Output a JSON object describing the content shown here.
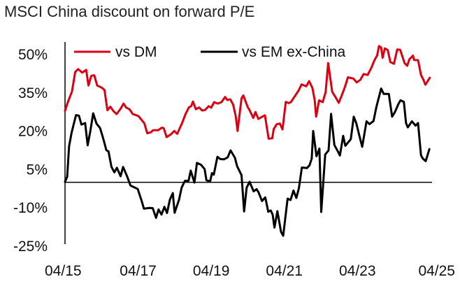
{
  "chart_data": {
    "type": "line",
    "title": "MSCI China discount on forward P/E",
    "xlabel": "",
    "ylabel": "",
    "ylim": [
      -25,
      52
    ],
    "xlim": [
      2015.25,
      2025.33
    ],
    "yticks": [
      50,
      35,
      20,
      5,
      -10,
      -25
    ],
    "ytick_labels": [
      "50%",
      "35%",
      "20%",
      "5%",
      "-10%",
      "-25%"
    ],
    "xticks": [
      2015.25,
      2017.25,
      2019.25,
      2021.25,
      2023.25,
      2025.25
    ],
    "xtick_labels": [
      "04/15",
      "04/17",
      "04/19",
      "04/21",
      "04/23",
      "04/25"
    ],
    "legend": "top-left",
    "grid": false,
    "series": [
      {
        "name": "vs DM",
        "color": "#db0011",
        "points": [
          [
            2015.25,
            28.0
          ],
          [
            2015.33,
            31.5
          ],
          [
            2015.44,
            35.5
          ],
          [
            2015.53,
            43.2
          ],
          [
            2015.61,
            44.3
          ],
          [
            2015.72,
            42.9
          ],
          [
            2015.83,
            44.0
          ],
          [
            2015.89,
            37.9
          ],
          [
            2015.97,
            41.7
          ],
          [
            2016.05,
            41.9
          ],
          [
            2016.13,
            37.9
          ],
          [
            2016.25,
            37.1
          ],
          [
            2016.33,
            36.1
          ],
          [
            2016.41,
            28.2
          ],
          [
            2016.49,
            29.6
          ],
          [
            2016.58,
            27.8
          ],
          [
            2016.66,
            26.7
          ],
          [
            2016.77,
            28.8
          ],
          [
            2016.85,
            30.8
          ],
          [
            2016.92,
            29.3
          ],
          [
            2017.02,
            28.5
          ],
          [
            2017.1,
            26.8
          ],
          [
            2017.26,
            25.9
          ],
          [
            2017.42,
            23.1
          ],
          [
            2017.5,
            19.2
          ],
          [
            2017.6,
            19.6
          ],
          [
            2017.66,
            20.4
          ],
          [
            2017.8,
            20.4
          ],
          [
            2017.9,
            21.4
          ],
          [
            2017.95,
            21.2
          ],
          [
            2018.03,
            17.7
          ],
          [
            2018.14,
            18.7
          ],
          [
            2018.24,
            20.1
          ],
          [
            2018.32,
            19.0
          ],
          [
            2018.45,
            23.1
          ],
          [
            2018.55,
            26.8
          ],
          [
            2018.64,
            29.3
          ],
          [
            2018.7,
            29.8
          ],
          [
            2018.75,
            31.6
          ],
          [
            2018.83,
            28.6
          ],
          [
            2018.92,
            29.3
          ],
          [
            2019.0,
            28.1
          ],
          [
            2019.08,
            28.3
          ],
          [
            2019.18,
            29.8
          ],
          [
            2019.25,
            29.2
          ],
          [
            2019.33,
            31.4
          ],
          [
            2019.43,
            30.8
          ],
          [
            2019.53,
            31.4
          ],
          [
            2019.63,
            33.4
          ],
          [
            2019.69,
            32.2
          ],
          [
            2019.77,
            32.5
          ],
          [
            2019.85,
            30.4
          ],
          [
            2019.92,
            25.9
          ],
          [
            2019.97,
            20.1
          ],
          [
            2020.08,
            32.9
          ],
          [
            2020.13,
            34.0
          ],
          [
            2020.25,
            29.4
          ],
          [
            2020.29,
            28.5
          ],
          [
            2020.4,
            25.2
          ],
          [
            2020.46,
            27.5
          ],
          [
            2020.54,
            24.8
          ],
          [
            2020.62,
            25.5
          ],
          [
            2020.72,
            26.2
          ],
          [
            2020.82,
            17.1
          ],
          [
            2020.92,
            17.2
          ],
          [
            2020.96,
            20.8
          ],
          [
            2021.04,
            22.7
          ],
          [
            2021.13,
            23.0
          ],
          [
            2021.2,
            20.7
          ],
          [
            2021.29,
            31.5
          ],
          [
            2021.37,
            31.0
          ],
          [
            2021.43,
            31.4
          ],
          [
            2021.51,
            33.1
          ],
          [
            2021.64,
            35.9
          ],
          [
            2021.72,
            38.3
          ],
          [
            2021.85,
            37.6
          ],
          [
            2021.93,
            39.6
          ],
          [
            2022.02,
            36.9
          ],
          [
            2022.08,
            32.3
          ],
          [
            2022.12,
            25.7
          ],
          [
            2022.2,
            32.1
          ],
          [
            2022.3,
            31.4
          ],
          [
            2022.38,
            35.3
          ],
          [
            2022.45,
            46.7
          ],
          [
            2022.56,
            35.4
          ],
          [
            2022.66,
            33.1
          ],
          [
            2022.74,
            31.1
          ],
          [
            2022.84,
            34.7
          ],
          [
            2022.91,
            37.4
          ],
          [
            2022.99,
            41.1
          ],
          [
            2023.14,
            40.6
          ],
          [
            2023.23,
            39.1
          ],
          [
            2023.33,
            40.1
          ],
          [
            2023.42,
            42.4
          ],
          [
            2023.53,
            42.0
          ],
          [
            2023.63,
            44.8
          ],
          [
            2023.71,
            47.6
          ],
          [
            2023.79,
            49.7
          ],
          [
            2023.84,
            53.3
          ],
          [
            2023.9,
            52.8
          ],
          [
            2023.94,
            48.7
          ],
          [
            2024.0,
            52.4
          ],
          [
            2024.08,
            51.8
          ],
          [
            2024.15,
            47.1
          ],
          [
            2024.25,
            46.4
          ],
          [
            2024.34,
            52.0
          ],
          [
            2024.42,
            51.9
          ],
          [
            2024.54,
            46.7
          ],
          [
            2024.61,
            45.6
          ],
          [
            2024.67,
            48.1
          ],
          [
            2024.77,
            49.6
          ],
          [
            2024.8,
            47.9
          ],
          [
            2024.91,
            47.8
          ],
          [
            2024.99,
            42.0
          ],
          [
            2025.05,
            40.3
          ],
          [
            2025.11,
            38.2
          ],
          [
            2025.23,
            40.9
          ]
        ]
      },
      {
        "name": "vs EM ex-China",
        "color": "#000000",
        "points": [
          [
            2015.25,
            0.2
          ],
          [
            2015.31,
            2.2
          ],
          [
            2015.36,
            14.1
          ],
          [
            2015.43,
            19.4
          ],
          [
            2015.55,
            26.3
          ],
          [
            2015.63,
            26.1
          ],
          [
            2015.7,
            22.6
          ],
          [
            2015.8,
            23.2
          ],
          [
            2015.87,
            14.5
          ],
          [
            2015.94,
            19.9
          ],
          [
            2016.02,
            27.0
          ],
          [
            2016.11,
            23.0
          ],
          [
            2016.21,
            21.2
          ],
          [
            2016.3,
            16.9
          ],
          [
            2016.38,
            12.6
          ],
          [
            2016.44,
            12.1
          ],
          [
            2016.52,
            6.1
          ],
          [
            2016.6,
            3.9
          ],
          [
            2016.67,
            5.7
          ],
          [
            2016.77,
            2.4
          ],
          [
            2016.84,
            6.0
          ],
          [
            2016.95,
            2.3
          ],
          [
            2017.04,
            -1.2
          ],
          [
            2017.24,
            -2.6
          ],
          [
            2017.34,
            -7.0
          ],
          [
            2017.41,
            -10.3
          ],
          [
            2017.5,
            -10.1
          ],
          [
            2017.57,
            -10.0
          ],
          [
            2017.65,
            -10.1
          ],
          [
            2017.74,
            -13.9
          ],
          [
            2017.81,
            -10.6
          ],
          [
            2017.89,
            -12.6
          ],
          [
            2017.97,
            -9.6
          ],
          [
            2018.04,
            -12.0
          ],
          [
            2018.12,
            -6.8
          ],
          [
            2018.2,
            -4.2
          ],
          [
            2018.25,
            -11.9
          ],
          [
            2018.37,
            -6.8
          ],
          [
            2018.44,
            -2.1
          ],
          [
            2018.53,
            0.6
          ],
          [
            2018.63,
            0.6
          ],
          [
            2018.69,
            4.6
          ],
          [
            2018.79,
            -0.1
          ],
          [
            2018.86,
            7.6
          ],
          [
            2018.97,
            6.9
          ],
          [
            2019.07,
            5.2
          ],
          [
            2019.12,
            0.8
          ],
          [
            2019.22,
            0.4
          ],
          [
            2019.27,
            3.6
          ],
          [
            2019.32,
            3.0
          ],
          [
            2019.42,
            10.0
          ],
          [
            2019.5,
            9.1
          ],
          [
            2019.6,
            9.0
          ],
          [
            2019.7,
            9.8
          ],
          [
            2019.78,
            12.5
          ],
          [
            2019.9,
            9.6
          ],
          [
            2019.96,
            6.3
          ],
          [
            2020.08,
            2.8
          ],
          [
            2020.15,
            -11.4
          ],
          [
            2020.22,
            -2.1
          ],
          [
            2020.3,
            0.2
          ],
          [
            2020.41,
            -3.5
          ],
          [
            2020.49,
            -2.7
          ],
          [
            2020.54,
            -3.8
          ],
          [
            2020.64,
            -7.3
          ],
          [
            2020.73,
            -5.9
          ],
          [
            2020.81,
            -11.5
          ],
          [
            2020.88,
            -11.0
          ],
          [
            2020.93,
            -12.6
          ],
          [
            2020.98,
            -17.7
          ],
          [
            2021.06,
            -11.3
          ],
          [
            2021.16,
            -19.4
          ],
          [
            2021.22,
            -20.9
          ],
          [
            2021.34,
            -6.4
          ],
          [
            2021.42,
            -6.9
          ],
          [
            2021.5,
            -3.2
          ],
          [
            2021.58,
            -6.1
          ],
          [
            2021.65,
            -2.2
          ],
          [
            2021.73,
            5.8
          ],
          [
            2021.87,
            5.6
          ],
          [
            2021.94,
            6.7
          ],
          [
            2022.0,
            9.3
          ],
          [
            2022.04,
            20.1
          ],
          [
            2022.13,
            10.2
          ],
          [
            2022.21,
            13.2
          ],
          [
            2022.26,
            -11.6
          ],
          [
            2022.37,
            10.9
          ],
          [
            2022.46,
            12.5
          ],
          [
            2022.53,
            26.8
          ],
          [
            2022.62,
            14.6
          ],
          [
            2022.72,
            12.0
          ],
          [
            2022.77,
            10.5
          ],
          [
            2022.86,
            18.2
          ],
          [
            2022.92,
            14.3
          ],
          [
            2023.07,
            16.9
          ],
          [
            2023.15,
            25.7
          ],
          [
            2023.22,
            23.1
          ],
          [
            2023.3,
            18.4
          ],
          [
            2023.38,
            13.9
          ],
          [
            2023.5,
            23.9
          ],
          [
            2023.58,
            22.8
          ],
          [
            2023.69,
            24.0
          ],
          [
            2023.77,
            29.5
          ],
          [
            2023.9,
            36.7
          ],
          [
            2023.97,
            34.6
          ],
          [
            2024.11,
            34.6
          ],
          [
            2024.2,
            25.7
          ],
          [
            2024.28,
            27.6
          ],
          [
            2024.37,
            30.6
          ],
          [
            2024.43,
            32.1
          ],
          [
            2024.52,
            31.5
          ],
          [
            2024.58,
            23.2
          ],
          [
            2024.63,
            21.5
          ],
          [
            2024.74,
            23.9
          ],
          [
            2024.84,
            22.2
          ],
          [
            2024.91,
            23.2
          ],
          [
            2024.99,
            10.6
          ],
          [
            2025.04,
            9.3
          ],
          [
            2025.12,
            8.3
          ],
          [
            2025.22,
            13.0
          ]
        ]
      }
    ]
  }
}
